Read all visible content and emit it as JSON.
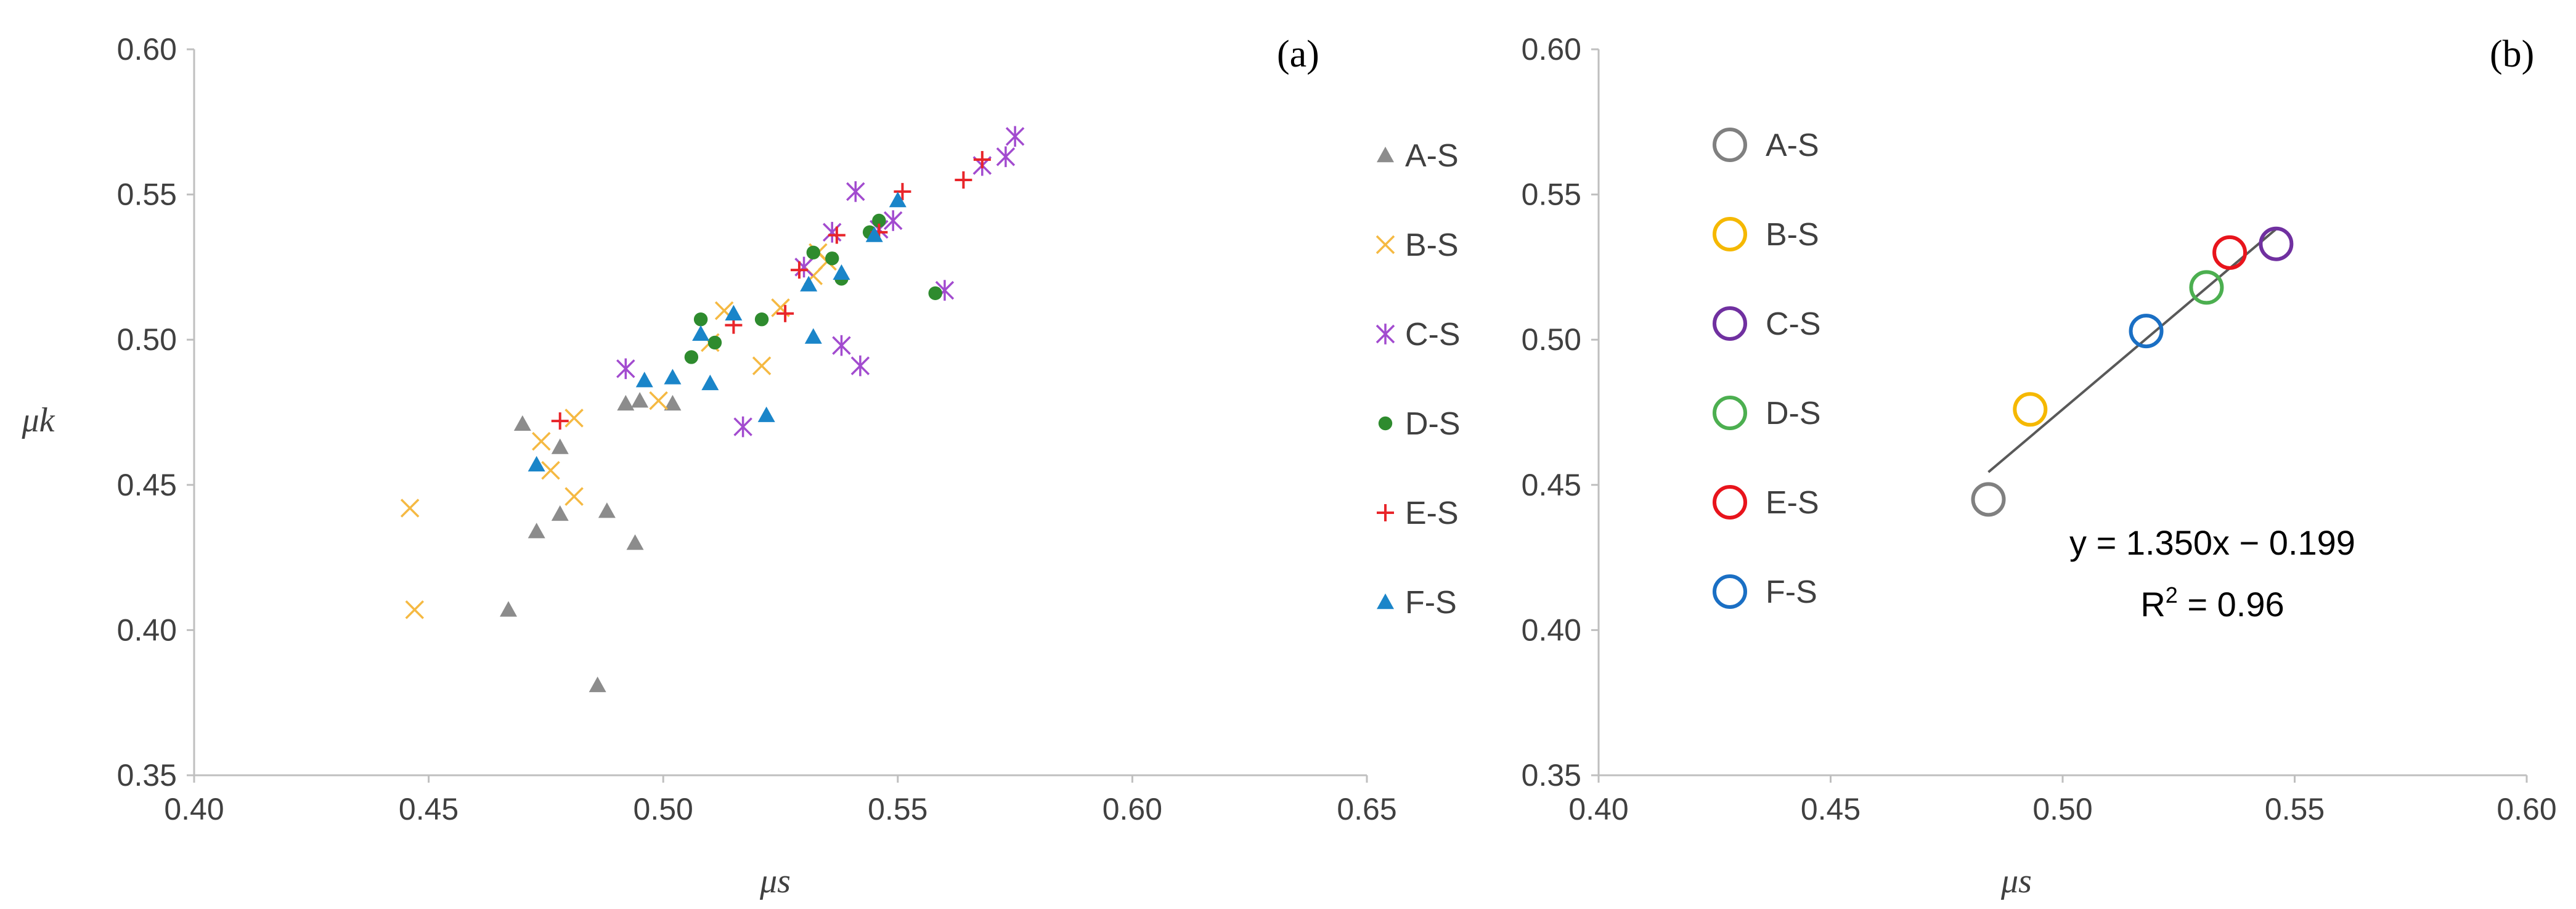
{
  "chart_data": [
    {
      "type": "scatter",
      "panel_label": "(a)",
      "xlabel": "μs",
      "ylabel": "μk",
      "xlim": [
        0.4,
        0.65
      ],
      "ylim": [
        0.35,
        0.6
      ],
      "xticks": [
        "0.40",
        "0.45",
        "0.50",
        "0.55",
        "0.60",
        "0.65"
      ],
      "yticks": [
        "0.35",
        "0.40",
        "0.45",
        "0.50",
        "0.55",
        "0.60"
      ],
      "legend_position": "right",
      "series": [
        {
          "name": "A-S",
          "marker": "triangle",
          "color": "#8c8c8c",
          "points": [
            [
              0.467,
              0.407
            ],
            [
              0.47,
              0.471
            ],
            [
              0.473,
              0.434
            ],
            [
              0.478,
              0.44
            ],
            [
              0.478,
              0.463
            ],
            [
              0.486,
              0.381
            ],
            [
              0.488,
              0.441
            ],
            [
              0.492,
              0.478
            ],
            [
              0.495,
              0.479
            ],
            [
              0.494,
              0.43
            ],
            [
              0.502,
              0.478
            ]
          ]
        },
        {
          "name": "B-S",
          "marker": "x",
          "color": "#f5b942",
          "points": [
            [
              0.446,
              0.442
            ],
            [
              0.447,
              0.407
            ],
            [
              0.474,
              0.465
            ],
            [
              0.476,
              0.455
            ],
            [
              0.481,
              0.446
            ],
            [
              0.481,
              0.473
            ],
            [
              0.499,
              0.479
            ],
            [
              0.51,
              0.499
            ],
            [
              0.513,
              0.51
            ],
            [
              0.521,
              0.491
            ],
            [
              0.525,
              0.511
            ],
            [
              0.532,
              0.522
            ],
            [
              0.533,
              0.53
            ],
            [
              0.535,
              0.527
            ]
          ]
        },
        {
          "name": "C-S",
          "marker": "asterisk",
          "color": "#a24bcf",
          "points": [
            [
              0.492,
              0.49
            ],
            [
              0.517,
              0.47
            ],
            [
              0.53,
              0.525
            ],
            [
              0.536,
              0.537
            ],
            [
              0.538,
              0.498
            ],
            [
              0.541,
              0.551
            ],
            [
              0.542,
              0.491
            ],
            [
              0.546,
              0.538
            ],
            [
              0.549,
              0.541
            ],
            [
              0.56,
              0.517
            ],
            [
              0.568,
              0.56
            ],
            [
              0.573,
              0.563
            ],
            [
              0.575,
              0.57
            ]
          ]
        },
        {
          "name": "D-S",
          "marker": "circle",
          "color": "#2e8b2e",
          "points": [
            [
              0.506,
              0.494
            ],
            [
              0.508,
              0.507
            ],
            [
              0.511,
              0.499
            ],
            [
              0.521,
              0.507
            ],
            [
              0.532,
              0.53
            ],
            [
              0.536,
              0.528
            ],
            [
              0.538,
              0.521
            ],
            [
              0.544,
              0.537
            ],
            [
              0.546,
              0.541
            ],
            [
              0.558,
              0.516
            ]
          ]
        },
        {
          "name": "E-S",
          "marker": "plus",
          "color": "#e8252a",
          "points": [
            [
              0.478,
              0.472
            ],
            [
              0.515,
              0.505
            ],
            [
              0.526,
              0.509
            ],
            [
              0.529,
              0.524
            ],
            [
              0.537,
              0.536
            ],
            [
              0.546,
              0.537
            ],
            [
              0.551,
              0.551
            ],
            [
              0.564,
              0.555
            ],
            [
              0.568,
              0.562
            ]
          ]
        },
        {
          "name": "F-S",
          "marker": "triangle",
          "color": "#1a85c9",
          "points": [
            [
              0.473,
              0.457
            ],
            [
              0.496,
              0.486
            ],
            [
              0.502,
              0.487
            ],
            [
              0.508,
              0.502
            ],
            [
              0.51,
              0.485
            ],
            [
              0.515,
              0.509
            ],
            [
              0.522,
              0.474
            ],
            [
              0.531,
              0.519
            ],
            [
              0.532,
              0.501
            ],
            [
              0.538,
              0.523
            ],
            [
              0.545,
              0.536
            ],
            [
              0.55,
              0.548
            ]
          ]
        }
      ]
    },
    {
      "type": "scatter",
      "panel_label": "(b)",
      "xlabel": "μs",
      "ylabel": "",
      "xlim": [
        0.4,
        0.6
      ],
      "ylim": [
        0.35,
        0.6
      ],
      "xticks": [
        "0.40",
        "0.45",
        "0.50",
        "0.55",
        "0.60"
      ],
      "yticks": [
        "0.35",
        "0.40",
        "0.45",
        "0.50",
        "0.55",
        "0.60"
      ],
      "legend_position": "left",
      "series": [
        {
          "name": "A-S",
          "marker": "open-circle",
          "color": "#808080",
          "points": [
            [
              0.484,
              0.445
            ]
          ]
        },
        {
          "name": "B-S",
          "marker": "open-circle",
          "color": "#f5b800",
          "points": [
            [
              0.493,
              0.476
            ]
          ]
        },
        {
          "name": "C-S",
          "marker": "open-circle",
          "color": "#7030a0",
          "points": [
            [
              0.546,
              0.533
            ]
          ]
        },
        {
          "name": "D-S",
          "marker": "open-circle",
          "color": "#4caf50",
          "points": [
            [
              0.531,
              0.518
            ]
          ]
        },
        {
          "name": "E-S",
          "marker": "open-circle",
          "color": "#e8141c",
          "points": [
            [
              0.536,
              0.53
            ]
          ]
        },
        {
          "name": "F-S",
          "marker": "open-circle",
          "color": "#1a6fc4",
          "points": [
            [
              0.518,
              0.503
            ]
          ]
        }
      ],
      "fit_line": {
        "slope": 1.35,
        "intercept": -0.199,
        "x_range": [
          0.484,
          0.546
        ],
        "equation": "y = 1.350x − 0.199",
        "r2_prefix": "R",
        "r2_exp": "2",
        "r2_suffix": " = 0.96"
      }
    }
  ]
}
